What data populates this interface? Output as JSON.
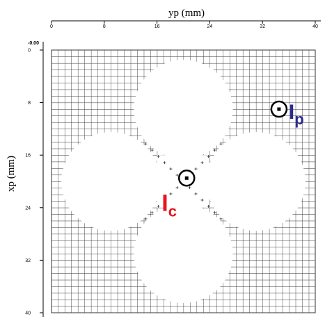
{
  "figure": {
    "x_axis_label": "yp (mm)",
    "y_axis_label": "xp (mm)",
    "x_ticks": [
      "0",
      "8",
      "16",
      "24",
      "32",
      "40"
    ],
    "y_ticks": [
      "0",
      "8",
      "16",
      "24",
      "32",
      "40"
    ],
    "origin_label": "-0.00",
    "axis_range_mm": [
      0,
      40
    ],
    "grid_pitch_mm": 1,
    "grid_color": "#333333",
    "background_color": "#ffffff",
    "clover_lobe_centers_mm": [
      [
        20,
        9
      ],
      [
        20,
        31
      ],
      [
        9,
        20
      ],
      [
        31,
        20
      ]
    ],
    "clover_lobe_radius_mm": 7.5,
    "clover_center_mm": [
      20,
      20
    ],
    "point_c": {
      "symbol": "I",
      "subscript": "c",
      "color": "#e8141c",
      "position_mm": {
        "yp": 20.5,
        "xp": 19.5
      }
    },
    "point_p": {
      "symbol": "I",
      "subscript": "p",
      "color": "#2b2b8c",
      "position_mm": {
        "yp": 34.5,
        "xp": 9
      }
    }
  }
}
